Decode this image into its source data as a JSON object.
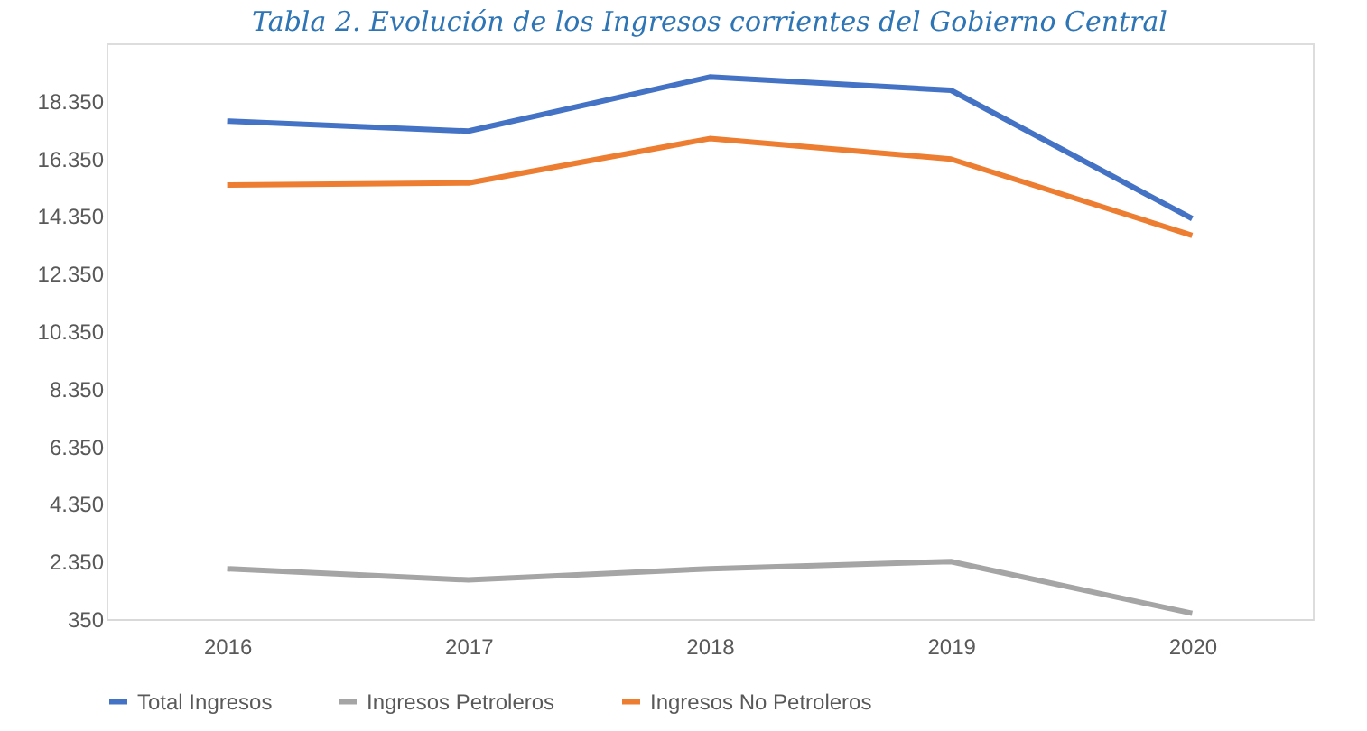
{
  "chart_data": {
    "type": "line",
    "title": "Tabla 2. Evolución de los Ingresos corrientes del Gobierno Central",
    "categories": [
      "2016",
      "2017",
      "2018",
      "2019",
      "2020"
    ],
    "series": [
      {
        "name": "Total Ingresos",
        "color": "#4472c4",
        "values": [
          17650,
          17300,
          19180,
          18720,
          14260
        ]
      },
      {
        "name": "Ingresos Petroleros",
        "color": "#a5a5a5",
        "values": [
          2100,
          1710,
          2100,
          2350,
          550
        ]
      },
      {
        "name": "Ingresos No Petroleros",
        "color": "#ed7d31",
        "values": [
          15430,
          15500,
          17040,
          16330,
          13680
        ]
      }
    ],
    "ylim": [
      350,
      20350
    ],
    "yticks": [
      {
        "value": 350,
        "label": "350"
      },
      {
        "value": 2350,
        "label": "2.350"
      },
      {
        "value": 4350,
        "label": "4.350"
      },
      {
        "value": 6350,
        "label": "6.350"
      },
      {
        "value": 8350,
        "label": "8.350"
      },
      {
        "value": 10350,
        "label": "10.350"
      },
      {
        "value": 12350,
        "label": "12.350"
      },
      {
        "value": 14350,
        "label": "14.350"
      },
      {
        "value": 16350,
        "label": "16.350"
      },
      {
        "value": 18350,
        "label": "18.350"
      }
    ],
    "grid": false,
    "legend": "bottom",
    "marker": "none",
    "line_style": "solid"
  }
}
